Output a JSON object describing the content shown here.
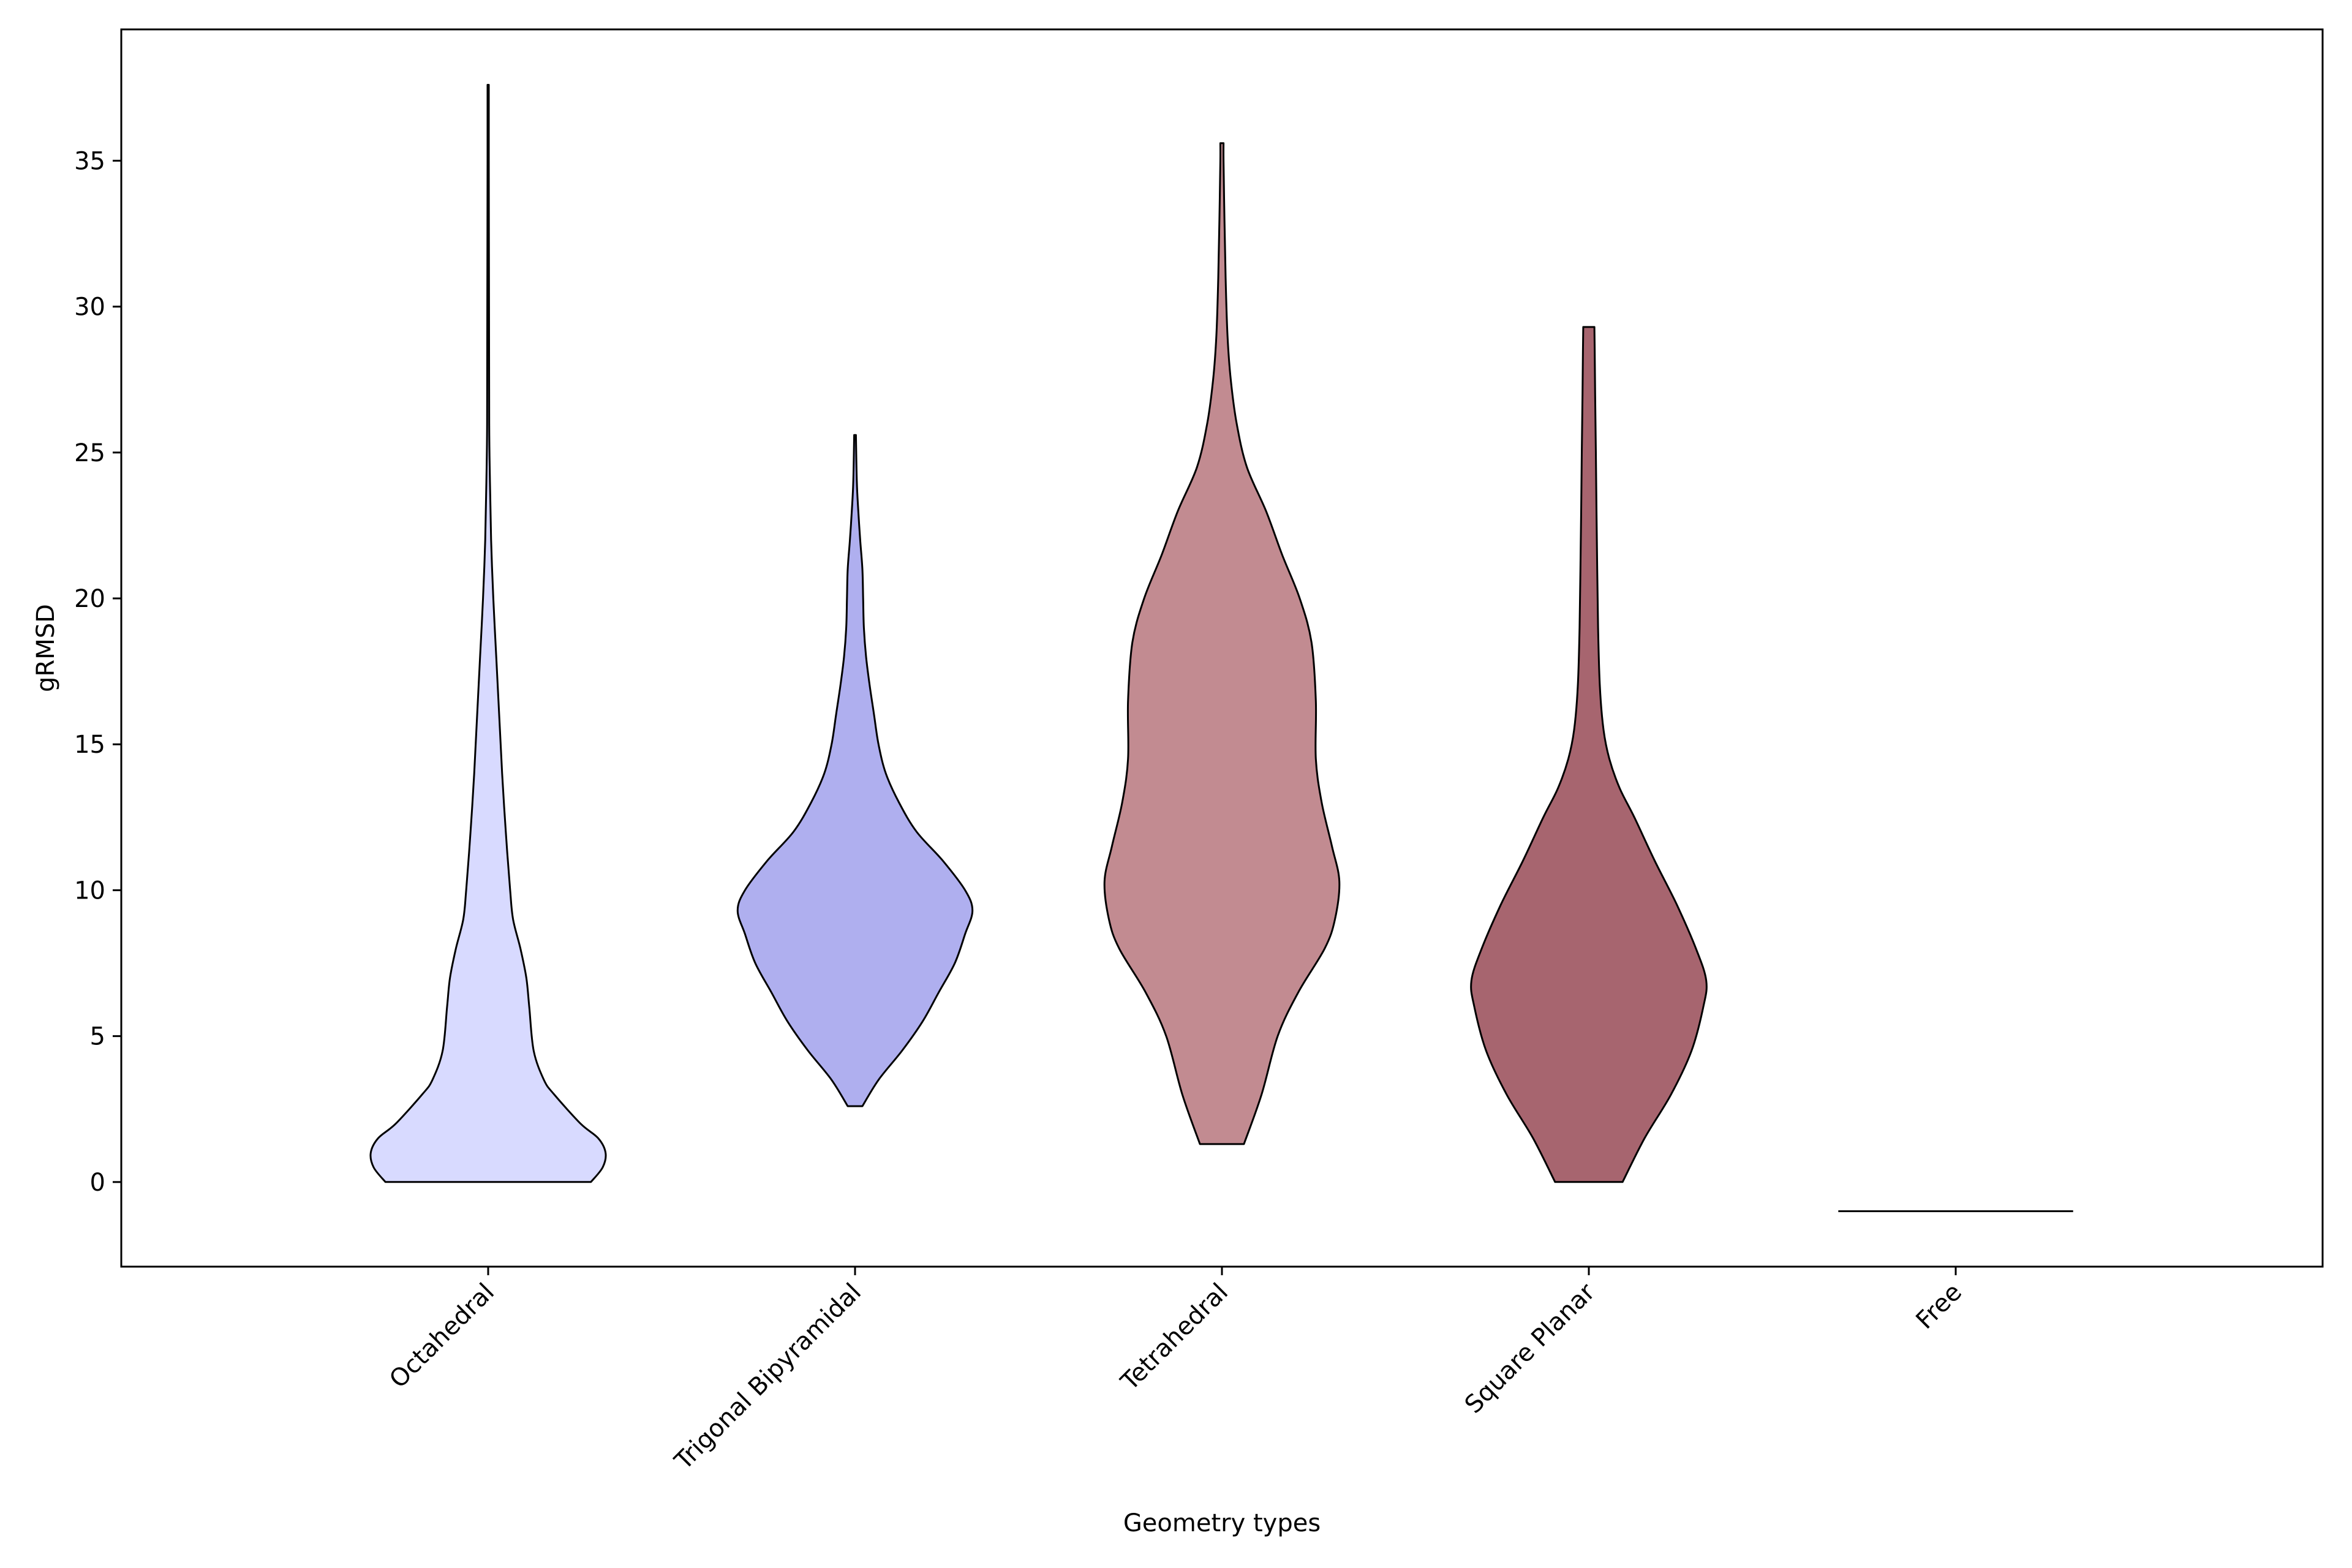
{
  "chart_data": {
    "type": "violin",
    "xlabel": "Geometry types",
    "ylabel": "gRMSD",
    "ylim": [
      -2.9,
      39.5
    ],
    "yticks": [
      0,
      5,
      10,
      15,
      20,
      25,
      30,
      35
    ],
    "categories": [
      "Octahedral",
      "Trigonal Bipyramidal",
      "Tetrahedral",
      "Square Planar",
      "Free"
    ],
    "grid": false,
    "legend": "none",
    "violins": [
      {
        "category": "Octahedral",
        "color": "#d8daff",
        "min": 0.0,
        "max": 37.6,
        "profile": [
          [
            0.0,
            0.7
          ],
          [
            0.5,
            0.78
          ],
          [
            1.0,
            0.8
          ],
          [
            1.5,
            0.75
          ],
          [
            2.0,
            0.63
          ],
          [
            3.0,
            0.45
          ],
          [
            3.5,
            0.38
          ],
          [
            4.5,
            0.31
          ],
          [
            6.0,
            0.28
          ],
          [
            7.0,
            0.26
          ],
          [
            8.0,
            0.22
          ],
          [
            9.0,
            0.17
          ],
          [
            10.0,
            0.15
          ],
          [
            12.0,
            0.12
          ],
          [
            14.0,
            0.095
          ],
          [
            16.0,
            0.075
          ],
          [
            18.0,
            0.055
          ],
          [
            20.0,
            0.035
          ],
          [
            22.0,
            0.02
          ],
          [
            24.0,
            0.012
          ],
          [
            26.0,
            0.007
          ],
          [
            30.0,
            0.006
          ],
          [
            35.0,
            0.004
          ],
          [
            37.6,
            0.004
          ]
        ]
      },
      {
        "category": "Trigonal Bipyramidal",
        "color": "#afafef",
        "min": 2.6,
        "max": 25.6,
        "profile": [
          [
            2.6,
            0.05
          ],
          [
            3.5,
            0.16
          ],
          [
            4.5,
            0.32
          ],
          [
            5.5,
            0.46
          ],
          [
            6.5,
            0.57
          ],
          [
            7.5,
            0.68
          ],
          [
            8.5,
            0.75
          ],
          [
            9.3,
            0.8
          ],
          [
            10.0,
            0.75
          ],
          [
            11.0,
            0.6
          ],
          [
            12.0,
            0.42
          ],
          [
            13.0,
            0.3
          ],
          [
            14.0,
            0.21
          ],
          [
            15.0,
            0.16
          ],
          [
            16.0,
            0.13
          ],
          [
            17.0,
            0.1
          ],
          [
            18.0,
            0.075
          ],
          [
            19.0,
            0.06
          ],
          [
            20.0,
            0.055
          ],
          [
            21.0,
            0.05
          ],
          [
            22.0,
            0.035
          ],
          [
            23.0,
            0.022
          ],
          [
            24.0,
            0.012
          ],
          [
            25.6,
            0.006
          ]
        ]
      },
      {
        "category": "Tetrahedral",
        "color": "#c28b91",
        "min": 1.3,
        "max": 35.6,
        "profile": [
          [
            1.3,
            0.15
          ],
          [
            3.0,
            0.27
          ],
          [
            5.0,
            0.38
          ],
          [
            6.5,
            0.52
          ],
          [
            8.0,
            0.7
          ],
          [
            9.0,
            0.77
          ],
          [
            10.3,
            0.8
          ],
          [
            11.5,
            0.75
          ],
          [
            13.0,
            0.68
          ],
          [
            14.5,
            0.64
          ],
          [
            16.5,
            0.64
          ],
          [
            18.5,
            0.61
          ],
          [
            20.0,
            0.53
          ],
          [
            21.5,
            0.41
          ],
          [
            23.0,
            0.3
          ],
          [
            24.5,
            0.17
          ],
          [
            26.0,
            0.1
          ],
          [
            27.5,
            0.06
          ],
          [
            29.0,
            0.038
          ],
          [
            31.0,
            0.025
          ],
          [
            33.0,
            0.017
          ],
          [
            35.0,
            0.011
          ],
          [
            35.6,
            0.011
          ]
        ]
      },
      {
        "category": "Square Planar",
        "color": "#a7656f",
        "min": 0.0,
        "max": 29.3,
        "profile": [
          [
            0.0,
            0.23
          ],
          [
            1.5,
            0.38
          ],
          [
            3.0,
            0.56
          ],
          [
            4.5,
            0.7
          ],
          [
            6.0,
            0.78
          ],
          [
            6.9,
            0.8
          ],
          [
            8.0,
            0.73
          ],
          [
            9.5,
            0.6
          ],
          [
            11.0,
            0.45
          ],
          [
            12.5,
            0.31
          ],
          [
            13.5,
            0.21
          ],
          [
            14.5,
            0.14
          ],
          [
            15.5,
            0.1
          ],
          [
            17.0,
            0.075
          ],
          [
            19.0,
            0.063
          ],
          [
            21.0,
            0.057
          ],
          [
            23.0,
            0.052
          ],
          [
            25.0,
            0.048
          ],
          [
            27.0,
            0.043
          ],
          [
            28.5,
            0.04
          ],
          [
            29.3,
            0.038
          ]
        ]
      },
      {
        "category": "Free",
        "color": "#000000",
        "min": -1.0,
        "max": -1.0,
        "profile": [
          [
            -1.0,
            0.8
          ]
        ]
      }
    ]
  }
}
